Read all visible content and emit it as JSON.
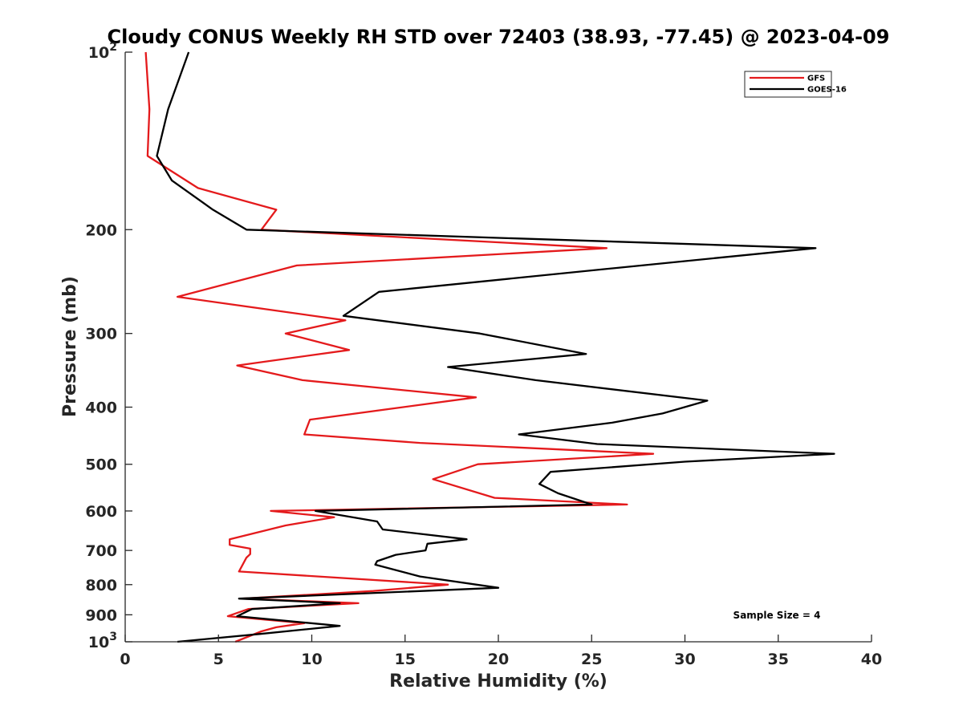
{
  "chart_data": {
    "type": "line",
    "title": "Cloudy CONUS Weekly RH STD over 72403 (38.93, -77.45) @ 2023-04-09",
    "xlabel": "Relative Humidity (%)",
    "ylabel": "Pressure (mb)",
    "xlim": [
      0,
      40
    ],
    "ylim": [
      100,
      1000
    ],
    "y_scale": "log",
    "y_reversed": true,
    "grid": false,
    "legend_position": "top-right",
    "x_ticks": [
      {
        "value": 0,
        "label": "0"
      },
      {
        "value": 5,
        "label": "5"
      },
      {
        "value": 10,
        "label": "10"
      },
      {
        "value": 15,
        "label": "15"
      },
      {
        "value": 20,
        "label": "20"
      },
      {
        "value": 25,
        "label": "25"
      },
      {
        "value": 30,
        "label": "30"
      },
      {
        "value": 35,
        "label": "35"
      },
      {
        "value": 40,
        "label": "40"
      }
    ],
    "y_ticks": [
      {
        "value": 100,
        "base": "10",
        "exp": "2"
      },
      {
        "value": 200,
        "label": "200"
      },
      {
        "value": 300,
        "label": "300"
      },
      {
        "value": 400,
        "label": "400"
      },
      {
        "value": 500,
        "label": "500"
      },
      {
        "value": 600,
        "label": "600"
      },
      {
        "value": 700,
        "label": "700"
      },
      {
        "value": 800,
        "label": "800"
      },
      {
        "value": 900,
        "label": "900"
      },
      {
        "value": 1000,
        "base": "10",
        "exp": "3"
      }
    ],
    "series": [
      {
        "name": "GFS",
        "color": "#e41a1c",
        "points": [
          [
            1.1,
            100
          ],
          [
            1.3,
            125
          ],
          [
            1.2,
            150
          ],
          [
            3.9,
            170
          ],
          [
            8.1,
            185
          ],
          [
            7.3,
            200
          ],
          [
            25.8,
            215
          ],
          [
            9.2,
            230
          ],
          [
            2.8,
            260
          ],
          [
            11.8,
            285
          ],
          [
            8.6,
            300
          ],
          [
            12.0,
            320
          ],
          [
            6.0,
            340
          ],
          [
            9.5,
            360
          ],
          [
            18.8,
            385
          ],
          [
            9.9,
            420
          ],
          [
            9.6,
            445
          ],
          [
            15.8,
            460
          ],
          [
            28.3,
            480
          ],
          [
            18.9,
            500
          ],
          [
            16.5,
            530
          ],
          [
            19.8,
            570
          ],
          [
            26.9,
            585
          ],
          [
            7.8,
            600
          ],
          [
            11.2,
            615
          ],
          [
            8.6,
            635
          ],
          [
            5.6,
            670
          ],
          [
            5.6,
            685
          ],
          [
            6.7,
            695
          ],
          [
            6.7,
            710
          ],
          [
            6.5,
            720
          ],
          [
            6.1,
            760
          ],
          [
            17.3,
            800
          ],
          [
            13.3,
            820
          ],
          [
            6.3,
            845
          ],
          [
            12.5,
            860
          ],
          [
            6.6,
            880
          ],
          [
            5.5,
            905
          ],
          [
            9.6,
            930
          ],
          [
            8.1,
            945
          ],
          [
            7.3,
            960
          ],
          [
            5.9,
            1000
          ]
        ]
      },
      {
        "name": "GOES-16",
        "color": "#000000",
        "points": [
          [
            3.4,
            100
          ],
          [
            2.3,
            125
          ],
          [
            1.7,
            150
          ],
          [
            2.5,
            165
          ],
          [
            4.7,
            185
          ],
          [
            6.5,
            200
          ],
          [
            37.0,
            215
          ],
          [
            26.5,
            232
          ],
          [
            13.6,
            255
          ],
          [
            11.7,
            280
          ],
          [
            19.0,
            300
          ],
          [
            24.7,
            325
          ],
          [
            17.3,
            342
          ],
          [
            22.0,
            360
          ],
          [
            31.2,
            390
          ],
          [
            28.8,
            410
          ],
          [
            26.1,
            425
          ],
          [
            21.1,
            445
          ],
          [
            25.3,
            462
          ],
          [
            38.0,
            480
          ],
          [
            30.0,
            495
          ],
          [
            22.8,
            515
          ],
          [
            22.2,
            540
          ],
          [
            23.2,
            560
          ],
          [
            25.0,
            585
          ],
          [
            10.2,
            600
          ],
          [
            13.5,
            625
          ],
          [
            13.8,
            645
          ],
          [
            18.3,
            670
          ],
          [
            16.2,
            682
          ],
          [
            16.1,
            700
          ],
          [
            14.5,
            712
          ],
          [
            13.5,
            730
          ],
          [
            13.4,
            740
          ],
          [
            15.8,
            775
          ],
          [
            20.0,
            810
          ],
          [
            6.1,
            845
          ],
          [
            11.5,
            860
          ],
          [
            6.8,
            880
          ],
          [
            6.0,
            905
          ],
          [
            11.5,
            940
          ],
          [
            7.2,
            970
          ],
          [
            2.8,
            1000
          ]
        ]
      }
    ],
    "annotation": "Sample Size = 4"
  }
}
